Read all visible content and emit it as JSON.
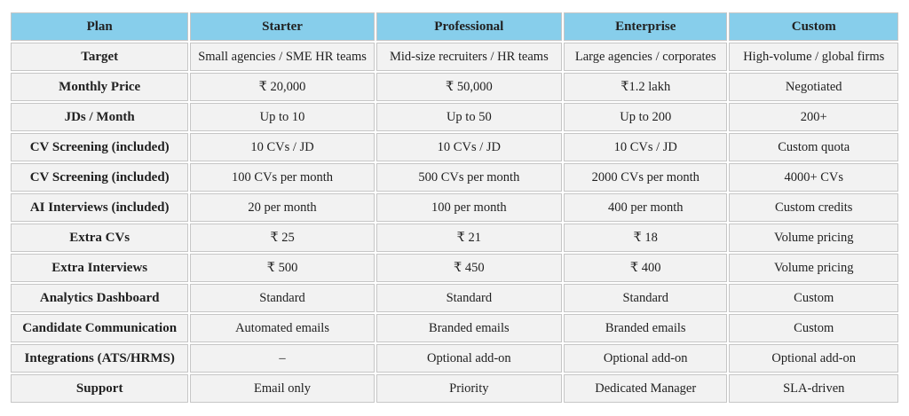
{
  "chart_data": {
    "type": "table",
    "columns": [
      "Plan",
      "Starter",
      "Professional",
      "Enterprise",
      "Custom"
    ],
    "rows": [
      {
        "label": "Target",
        "values": [
          "Small agencies / SME HR teams",
          "Mid-size recruiters / HR teams",
          "Large agencies / corporates",
          "High-volume / global firms"
        ]
      },
      {
        "label": "Monthly Price",
        "values": [
          "₹ 20,000",
          "₹ 50,000",
          "₹1.2 lakh",
          "Negotiated"
        ]
      },
      {
        "label": "JDs / Month",
        "values": [
          "Up to 10",
          "Up to 50",
          "Up to 200",
          "200+"
        ]
      },
      {
        "label": "CV Screening (included)",
        "values": [
          "10 CVs / JD",
          "10 CVs / JD",
          "10 CVs / JD",
          "Custom quota"
        ]
      },
      {
        "label": "CV Screening (included)",
        "values": [
          "100 CVs per month",
          "500 CVs per month",
          "2000 CVs per month",
          "4000+ CVs"
        ]
      },
      {
        "label": "AI Interviews (included)",
        "values": [
          "20 per month",
          "100 per month",
          "400 per month",
          "Custom credits"
        ]
      },
      {
        "label": "Extra CVs",
        "values": [
          "₹ 25",
          "₹ 21",
          "₹ 18",
          "Volume pricing"
        ]
      },
      {
        "label": "Extra Interviews",
        "values": [
          "₹ 500",
          "₹ 450",
          "₹ 400",
          "Volume pricing"
        ]
      },
      {
        "label": "Analytics Dashboard",
        "values": [
          "Standard",
          "Standard",
          "Standard",
          "Custom"
        ]
      },
      {
        "label": "Candidate Communication",
        "values": [
          "Automated emails",
          "Branded emails",
          "Branded emails",
          "Custom"
        ]
      },
      {
        "label": "Integrations (ATS/HRMS)",
        "values": [
          "–",
          "Optional add-on",
          "Optional add-on",
          "Optional add-on"
        ]
      },
      {
        "label": "Support",
        "values": [
          "Email only",
          "Priority",
          "Dedicated Manager",
          "SLA-driven"
        ]
      }
    ],
    "layout": {
      "header_position": "top",
      "grid": true,
      "column_width_percents": [
        20.2,
        20.9,
        21.1,
        18.6,
        19.2
      ]
    }
  },
  "colors": {
    "header_bg": "#87ceeb",
    "row_bg": "#f2f2f2",
    "border": "#c6c6c6",
    "text": "#212121",
    "page_bg": "#ffffff"
  }
}
